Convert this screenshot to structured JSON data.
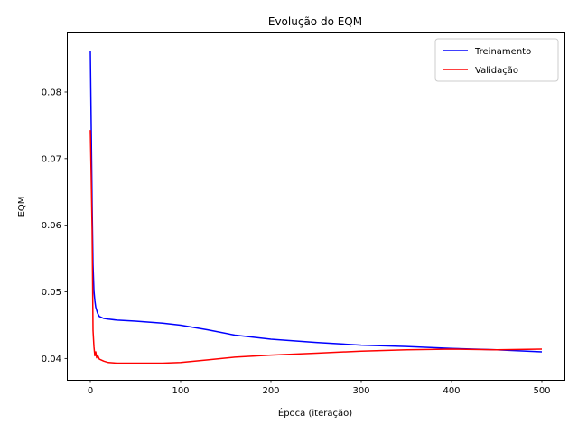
{
  "chart_data": {
    "type": "line",
    "title": "Evolução do EQM",
    "xlabel": "Época (iteração)",
    "ylabel": "EQM",
    "xlim": [
      -25,
      525
    ],
    "ylim": [
      0.0368,
      0.0888
    ],
    "xticks": [
      0,
      100,
      200,
      300,
      400,
      500
    ],
    "xtick_labels": [
      "0",
      "100",
      "200",
      "300",
      "400",
      "500"
    ],
    "yticks": [
      0.04,
      0.05,
      0.06,
      0.07,
      0.08
    ],
    "ytick_labels": [
      "0.04",
      "0.05",
      "0.06",
      "0.07",
      "0.08"
    ],
    "grid": false,
    "legend_position": "top-right",
    "series": [
      {
        "name": "Treinamento",
        "color": "#0000ff",
        "x": [
          0,
          1,
          2,
          3,
          4,
          5,
          6,
          8,
          10,
          15,
          20,
          30,
          50,
          80,
          100,
          130,
          160,
          200,
          250,
          300,
          350,
          400,
          450,
          500
        ],
        "y": [
          0.0862,
          0.0748,
          0.0632,
          0.0541,
          0.0502,
          0.0487,
          0.0477,
          0.0468,
          0.0463,
          0.046,
          0.0459,
          0.04575,
          0.0456,
          0.0453,
          0.045,
          0.0443,
          0.0435,
          0.0429,
          0.0424,
          0.042,
          0.0418,
          0.0415,
          0.0413,
          0.041
        ]
      },
      {
        "name": "Validação",
        "color": "#ff0000",
        "x": [
          0,
          1,
          2,
          3,
          4,
          5,
          6,
          7,
          8,
          10,
          15,
          20,
          30,
          50,
          80,
          100,
          130,
          160,
          200,
          250,
          300,
          350,
          400,
          450,
          500
        ],
        "y": [
          0.0743,
          0.0672,
          0.0592,
          0.0442,
          0.0418,
          0.0404,
          0.041,
          0.0401,
          0.0405,
          0.0399,
          0.0396,
          0.0394,
          0.0393,
          0.0393,
          0.0393,
          0.0394,
          0.0398,
          0.0402,
          0.0405,
          0.0408,
          0.0411,
          0.0413,
          0.0414,
          0.0413,
          0.0414
        ]
      }
    ]
  }
}
